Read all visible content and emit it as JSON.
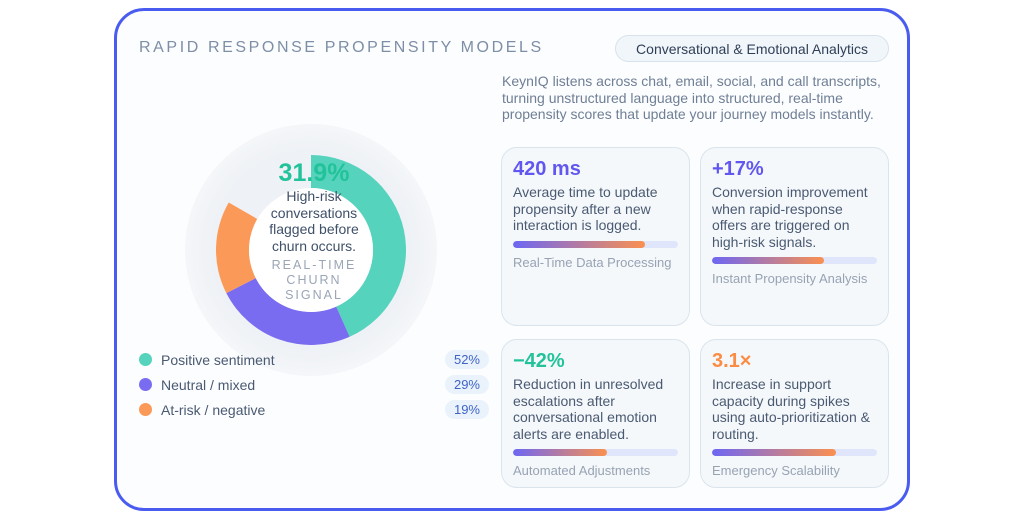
{
  "header": {
    "title": "RAPID RESPONSE PROPENSITY MODELS",
    "tag": "Conversational & Emotional Analytics"
  },
  "description": "KeynIQ listens across chat, email, social, and call transcripts, turning unstructured language into structured, real-time propensity scores that update your journey models instantly.",
  "donut": {
    "value": "31.9%",
    "caption": "High-risk conversations flagged before churn occurs.",
    "signal": "REAL-TIME CHURN SIGNAL"
  },
  "legend": [
    {
      "label": "Positive sentiment",
      "value": "52%",
      "pct": 52,
      "color": "#55d3bc"
    },
    {
      "label": "Neutral / mixed",
      "value": "29%",
      "pct": 29,
      "color": "#7a6cf0"
    },
    {
      "label": "At-risk / negative",
      "value": "19%",
      "pct": 19,
      "color": "#fb9a58"
    }
  ],
  "cards": [
    {
      "kpi": "420 ms",
      "color": "#6157f0",
      "text": "Average time to update propensity after a new interaction is logged.",
      "progress": 80,
      "sub": "Real-Time Data Processing"
    },
    {
      "kpi": "+17%",
      "color": "#6157f0",
      "text": "Conversion improvement when rapid-response offers are triggered on high-risk signals.",
      "progress": 68,
      "sub": "Instant Propensity Analysis"
    },
    {
      "kpi": "−42%",
      "color": "#22c39a",
      "text": "Reduction in unresolved escalations after conversational emotion alerts are enabled.",
      "progress": 57,
      "sub": "Automated Adjustments"
    },
    {
      "kpi": "3.1×",
      "color": "#fb8c44",
      "text": "Increase in support capacity during spikes using auto-prioritization & routing.",
      "progress": 75,
      "sub": "Emergency Scalability"
    }
  ]
}
